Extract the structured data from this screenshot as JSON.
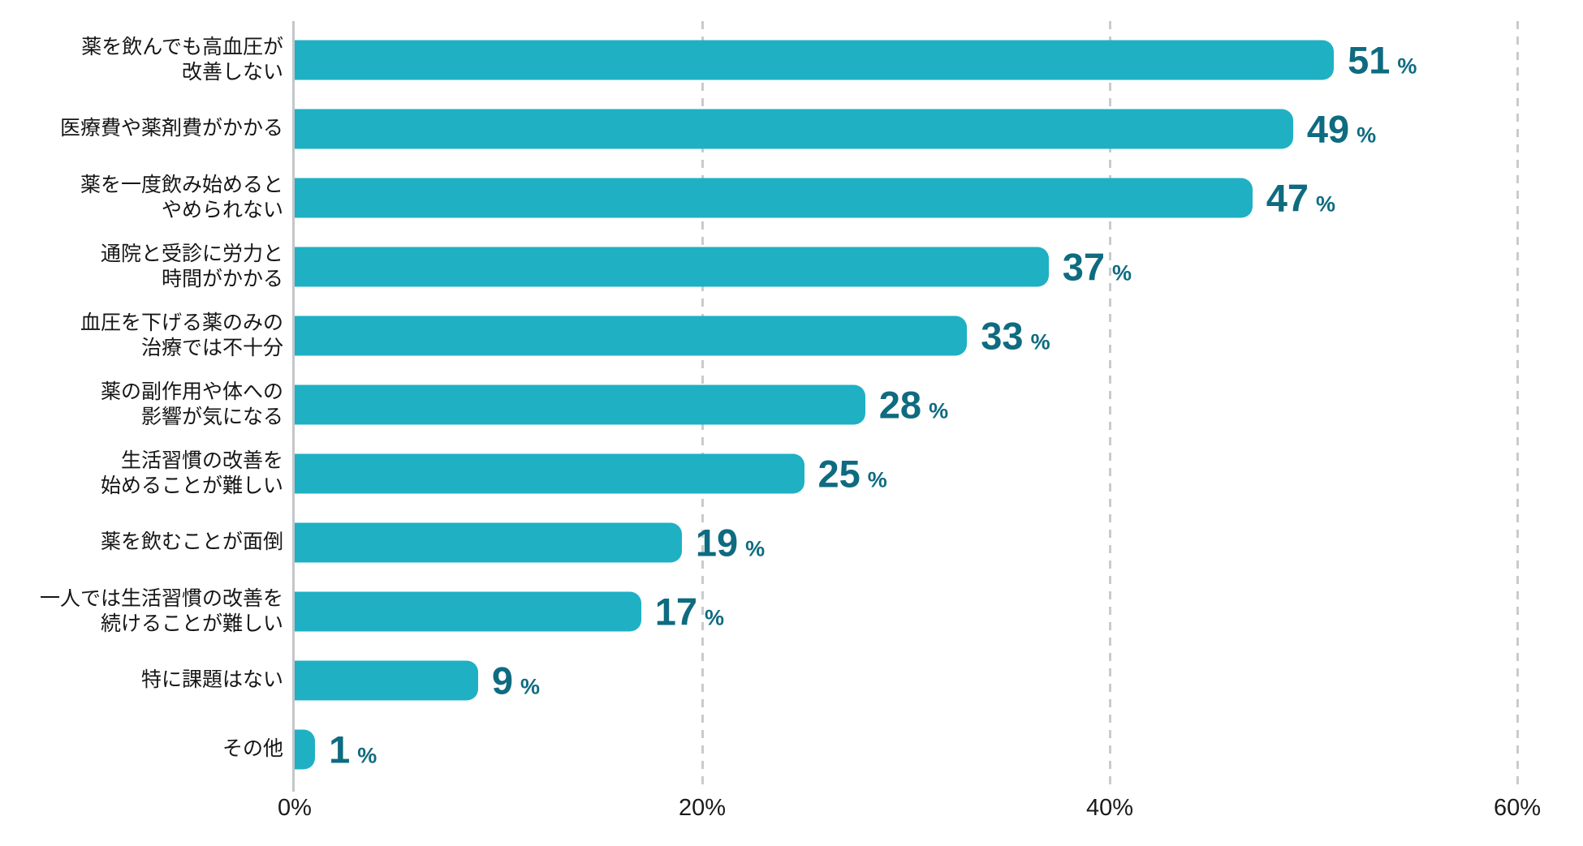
{
  "chart_data": {
    "type": "bar",
    "orientation": "horizontal",
    "title": "",
    "unit": "%",
    "categories": [
      "薬を飲んでも高血圧が\n改善しない",
      "医療費や薬剤費がかかる",
      "薬を一度飲み始めると\nやめられない",
      "通院と受診に労力と\n時間がかかる",
      "血圧を下げる薬のみの\n治療では不十分",
      "薬の副作用や体への\n影響が気になる",
      "生活習慣の改善を\n始めることが難しい",
      "薬を飲むことが面倒",
      "一人では生活習慣の改善を\n続けることが難しい",
      "特に課題はない",
      "その他"
    ],
    "values": [
      51,
      49,
      47,
      37,
      33,
      28,
      25,
      19,
      17,
      9,
      1
    ],
    "xlim": [
      0,
      60
    ],
    "x_tick_values": [
      0,
      20,
      40,
      60
    ],
    "x_tick_labels": [
      "0%",
      "20%",
      "40%",
      "60%"
    ],
    "grid": "vertical dashed gridlines at 20/40/60, solid axis line at 0",
    "legend": "none",
    "colors": {
      "bar": "#1fb0c4",
      "value_label": "#0e6b80",
      "category_label": "#161616",
      "tick_label": "#1a1a1a",
      "axis_line": "#c3c6c8",
      "gridline": "#c9cbcc",
      "background": "#ffffff"
    }
  }
}
